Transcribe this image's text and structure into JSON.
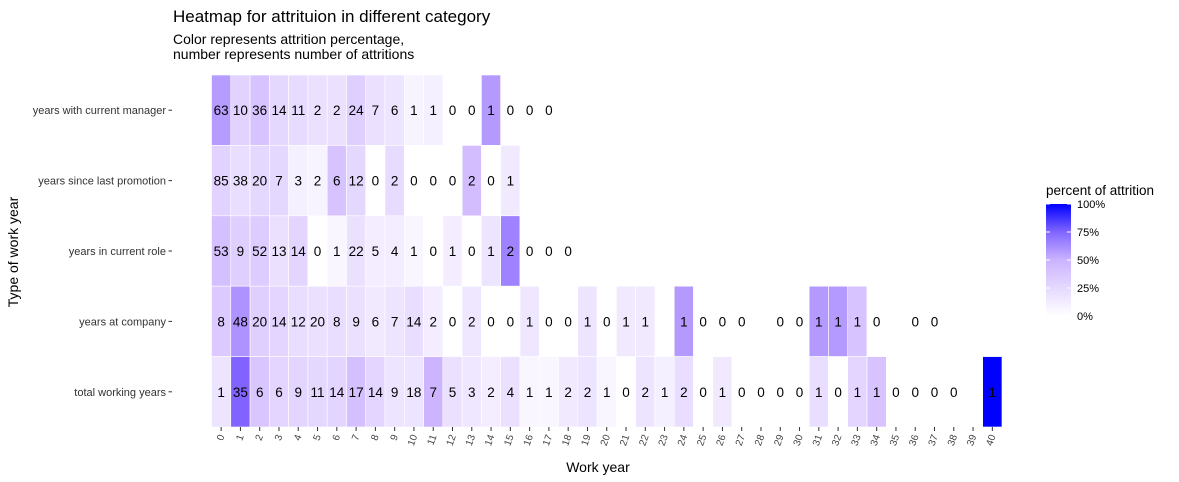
{
  "chart_data": {
    "type": "heatmap",
    "title": "Heatmap for attrituion in different category",
    "subtitle_lines": [
      "Color represents attrition percentage,",
      "number represents number of attritions"
    ],
    "xlabel": "Work year",
    "ylabel": "Type of work year",
    "x": [
      0,
      1,
      2,
      3,
      4,
      5,
      6,
      7,
      8,
      9,
      10,
      11,
      12,
      13,
      14,
      15,
      16,
      17,
      18,
      19,
      20,
      21,
      22,
      23,
      24,
      25,
      26,
      27,
      28,
      29,
      30,
      31,
      32,
      33,
      34,
      35,
      36,
      37,
      38,
      39,
      40
    ],
    "rows": [
      {
        "name": "years with current manager",
        "cells": [
          {
            "x": 0,
            "count": 63,
            "pct": 32
          },
          {
            "x": 1,
            "count": 10,
            "pct": 15
          },
          {
            "x": 2,
            "count": 36,
            "pct": 20
          },
          {
            "x": 3,
            "count": 14,
            "pct": 13
          },
          {
            "x": 4,
            "count": 11,
            "pct": 12
          },
          {
            "x": 5,
            "count": 2,
            "pct": 10
          },
          {
            "x": 6,
            "count": 2,
            "pct": 10
          },
          {
            "x": 7,
            "count": 24,
            "pct": 16
          },
          {
            "x": 8,
            "count": 7,
            "pct": 10
          },
          {
            "x": 9,
            "count": 6,
            "pct": 9
          },
          {
            "x": 10,
            "count": 1,
            "pct": 4
          },
          {
            "x": 11,
            "count": 1,
            "pct": 5
          },
          {
            "x": 12,
            "count": 0,
            "pct": 0
          },
          {
            "x": 13,
            "count": 0,
            "pct": 0
          },
          {
            "x": 14,
            "count": 1,
            "pct": 33
          },
          {
            "x": 15,
            "count": 0,
            "pct": 0
          },
          {
            "x": 16,
            "count": 0,
            "pct": 0
          },
          {
            "x": 17,
            "count": 0,
            "pct": 0
          }
        ]
      },
      {
        "name": "years since last promotion",
        "cells": [
          {
            "x": 0,
            "count": 85,
            "pct": 15
          },
          {
            "x": 1,
            "count": 38,
            "pct": 11
          },
          {
            "x": 2,
            "count": 20,
            "pct": 13
          },
          {
            "x": 3,
            "count": 7,
            "pct": 13
          },
          {
            "x": 4,
            "count": 3,
            "pct": 5
          },
          {
            "x": 5,
            "count": 2,
            "pct": 4
          },
          {
            "x": 6,
            "count": 6,
            "pct": 20
          },
          {
            "x": 7,
            "count": 12,
            "pct": 13
          },
          {
            "x": 8,
            "count": 0,
            "pct": 0
          },
          {
            "x": 9,
            "count": 2,
            "pct": 12
          },
          {
            "x": 10,
            "count": 0,
            "pct": 0
          },
          {
            "x": 11,
            "count": 0,
            "pct": 0
          },
          {
            "x": 12,
            "count": 0,
            "pct": 0
          },
          {
            "x": 13,
            "count": 2,
            "pct": 22
          },
          {
            "x": 14,
            "count": 0,
            "pct": 0
          },
          {
            "x": 15,
            "count": 1,
            "pct": 7
          }
        ]
      },
      {
        "name": "years in current role",
        "cells": [
          {
            "x": 0,
            "count": 53,
            "pct": 21
          },
          {
            "x": 1,
            "count": 9,
            "pct": 16
          },
          {
            "x": 2,
            "count": 52,
            "pct": 17
          },
          {
            "x": 3,
            "count": 13,
            "pct": 10
          },
          {
            "x": 4,
            "count": 14,
            "pct": 14
          },
          {
            "x": 5,
            "count": 0,
            "pct": 0
          },
          {
            "x": 6,
            "count": 1,
            "pct": 3
          },
          {
            "x": 7,
            "count": 22,
            "pct": 10
          },
          {
            "x": 8,
            "count": 5,
            "pct": 6
          },
          {
            "x": 9,
            "count": 4,
            "pct": 6
          },
          {
            "x": 10,
            "count": 1,
            "pct": 3
          },
          {
            "x": 11,
            "count": 0,
            "pct": 0
          },
          {
            "x": 12,
            "count": 1,
            "pct": 6
          },
          {
            "x": 13,
            "count": 0,
            "pct": 0
          },
          {
            "x": 14,
            "count": 1,
            "pct": 9
          },
          {
            "x": 15,
            "count": 2,
            "pct": 40
          },
          {
            "x": 16,
            "count": 0,
            "pct": 0
          },
          {
            "x": 17,
            "count": 0,
            "pct": 0
          },
          {
            "x": 18,
            "count": 0,
            "pct": 0
          }
        ]
      },
      {
        "name": "years at company",
        "cells": [
          {
            "x": 0,
            "count": 8,
            "pct": 18
          },
          {
            "x": 1,
            "count": 48,
            "pct": 35
          },
          {
            "x": 2,
            "count": 20,
            "pct": 16
          },
          {
            "x": 3,
            "count": 14,
            "pct": 14
          },
          {
            "x": 4,
            "count": 12,
            "pct": 11
          },
          {
            "x": 5,
            "count": 20,
            "pct": 10
          },
          {
            "x": 6,
            "count": 8,
            "pct": 11
          },
          {
            "x": 7,
            "count": 9,
            "pct": 10
          },
          {
            "x": 8,
            "count": 6,
            "pct": 7
          },
          {
            "x": 9,
            "count": 7,
            "pct": 9
          },
          {
            "x": 10,
            "count": 14,
            "pct": 11
          },
          {
            "x": 11,
            "count": 2,
            "pct": 6
          },
          {
            "x": 12,
            "count": 0,
            "pct": 0
          },
          {
            "x": 13,
            "count": 2,
            "pct": 8
          },
          {
            "x": 14,
            "count": 0,
            "pct": 0
          },
          {
            "x": 15,
            "count": 0,
            "pct": 0
          },
          {
            "x": 16,
            "count": 1,
            "pct": 8
          },
          {
            "x": 17,
            "count": 0,
            "pct": 0
          },
          {
            "x": 18,
            "count": 0,
            "pct": 0
          },
          {
            "x": 19,
            "count": 1,
            "pct": 9
          },
          {
            "x": 20,
            "count": 0,
            "pct": 0
          },
          {
            "x": 21,
            "count": 1,
            "pct": 7
          },
          {
            "x": 22,
            "count": 1,
            "pct": 7
          },
          {
            "x": 24,
            "count": 1,
            "pct": 33
          },
          {
            "x": 25,
            "count": 0,
            "pct": 0
          },
          {
            "x": 26,
            "count": 0,
            "pct": 0
          },
          {
            "x": 27,
            "count": 0,
            "pct": 0
          },
          {
            "x": 29,
            "count": 0,
            "pct": 0
          },
          {
            "x": 30,
            "count": 0,
            "pct": 0
          },
          {
            "x": 31,
            "count": 1,
            "pct": 33
          },
          {
            "x": 32,
            "count": 1,
            "pct": 33
          },
          {
            "x": 33,
            "count": 1,
            "pct": 20
          },
          {
            "x": 34,
            "count": 0,
            "pct": 0
          },
          {
            "x": 36,
            "count": 0,
            "pct": 0
          },
          {
            "x": 37,
            "count": 0,
            "pct": 0
          }
        ]
      },
      {
        "name": "total working years",
        "cells": [
          {
            "x": 0,
            "count": 1,
            "pct": 9
          },
          {
            "x": 1,
            "count": 35,
            "pct": 49
          },
          {
            "x": 2,
            "count": 6,
            "pct": 19
          },
          {
            "x": 3,
            "count": 6,
            "pct": 14
          },
          {
            "x": 4,
            "count": 9,
            "pct": 14
          },
          {
            "x": 5,
            "count": 11,
            "pct": 13
          },
          {
            "x": 6,
            "count": 14,
            "pct": 14
          },
          {
            "x": 7,
            "count": 17,
            "pct": 21
          },
          {
            "x": 8,
            "count": 14,
            "pct": 14
          },
          {
            "x": 9,
            "count": 9,
            "pct": 9
          },
          {
            "x": 10,
            "count": 18,
            "pct": 9
          },
          {
            "x": 11,
            "count": 7,
            "pct": 25
          },
          {
            "x": 12,
            "count": 5,
            "pct": 10
          },
          {
            "x": 13,
            "count": 3,
            "pct": 8
          },
          {
            "x": 14,
            "count": 2,
            "pct": 6
          },
          {
            "x": 15,
            "count": 4,
            "pct": 10
          },
          {
            "x": 16,
            "count": 1,
            "pct": 3
          },
          {
            "x": 17,
            "count": 1,
            "pct": 3
          },
          {
            "x": 18,
            "count": 2,
            "pct": 7
          },
          {
            "x": 19,
            "count": 2,
            "pct": 9
          },
          {
            "x": 20,
            "count": 1,
            "pct": 3
          },
          {
            "x": 21,
            "count": 0,
            "pct": 0
          },
          {
            "x": 22,
            "count": 2,
            "pct": 9
          },
          {
            "x": 23,
            "count": 1,
            "pct": 5
          },
          {
            "x": 24,
            "count": 2,
            "pct": 11
          },
          {
            "x": 25,
            "count": 0,
            "pct": 0
          },
          {
            "x": 26,
            "count": 1,
            "pct": 7
          },
          {
            "x": 27,
            "count": 0,
            "pct": 0
          },
          {
            "x": 28,
            "count": 0,
            "pct": 0
          },
          {
            "x": 29,
            "count": 0,
            "pct": 0
          },
          {
            "x": 30,
            "count": 0,
            "pct": 0
          },
          {
            "x": 31,
            "count": 1,
            "pct": 11
          },
          {
            "x": 32,
            "count": 0,
            "pct": 0
          },
          {
            "x": 33,
            "count": 1,
            "pct": 14
          },
          {
            "x": 34,
            "count": 1,
            "pct": 20
          },
          {
            "x": 35,
            "count": 0,
            "pct": 0
          },
          {
            "x": 36,
            "count": 0,
            "pct": 0
          },
          {
            "x": 37,
            "count": 0,
            "pct": 0
          },
          {
            "x": 38,
            "count": 0,
            "pct": 0
          },
          {
            "x": 40,
            "count": 1,
            "pct": 100
          }
        ]
      }
    ],
    "legend": {
      "title": "percent of attrition",
      "labels": [
        "0%",
        "25%",
        "50%",
        "75%",
        "100%"
      ],
      "range": [
        0,
        100
      ],
      "placement": "right"
    },
    "colors": {
      "low": "#ffffff",
      "high": "#0000ff",
      "purple_mid": "#9966ff"
    },
    "grid": false
  }
}
